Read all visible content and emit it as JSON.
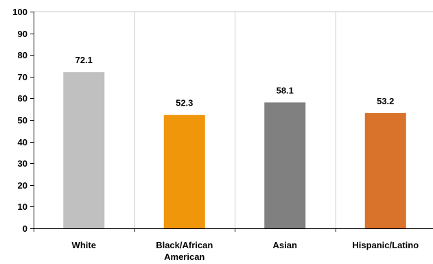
{
  "chart_data": {
    "type": "bar",
    "title": "",
    "xlabel": "",
    "ylabel": "",
    "ylim": [
      0,
      100
    ],
    "yticks": [
      0,
      10,
      20,
      30,
      40,
      50,
      60,
      70,
      80,
      90,
      100
    ],
    "grid": "vertical category separators",
    "legend": "none",
    "categories": [
      [
        "White"
      ],
      [
        "Black/African",
        "American"
      ],
      [
        "Asian"
      ],
      [
        "Hispanic/Latino"
      ]
    ],
    "values": [
      72.1,
      52.3,
      58.1,
      53.2
    ],
    "value_labels": [
      "72.1",
      "52.3",
      "58.1",
      "53.2"
    ],
    "bar_colors": [
      "#c0c0c0",
      "#f0960a",
      "#808080",
      "#d9722a"
    ],
    "colors": {
      "axis": "#000000",
      "gridline": "#c8c8c8",
      "plot_border": "#c8c8c8"
    }
  }
}
